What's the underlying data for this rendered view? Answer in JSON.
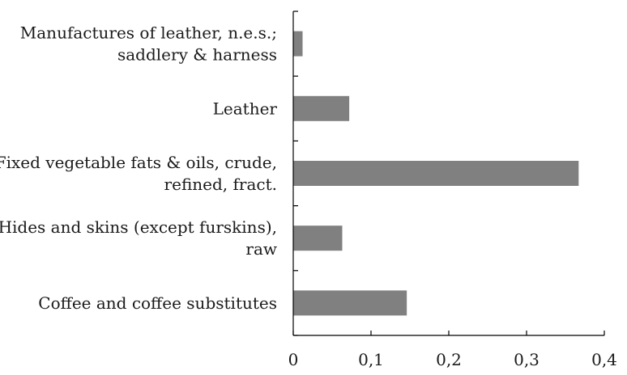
{
  "chart_data": {
    "type": "bar",
    "orientation": "horizontal",
    "categories": [
      [
        "Manufactures of leather, n.e.s.;",
        "saddlery & harness"
      ],
      [
        "Leather"
      ],
      [
        "Fixed vegetable fats & oils, crude,",
        "refined, fract."
      ],
      [
        "Hides and skins (except furskins),",
        "raw"
      ],
      [
        "Coffee and coffee substitutes"
      ]
    ],
    "values": [
      0.012,
      0.072,
      0.367,
      0.063,
      0.146
    ],
    "xlim": [
      0,
      0.4
    ],
    "xticks": [
      0,
      0.1,
      0.2,
      0.3,
      0.4
    ],
    "xtick_labels": [
      "0",
      "0,1",
      "0,2",
      "0,3",
      "0,4"
    ],
    "bar_color": "#808080",
    "grid": false
  }
}
